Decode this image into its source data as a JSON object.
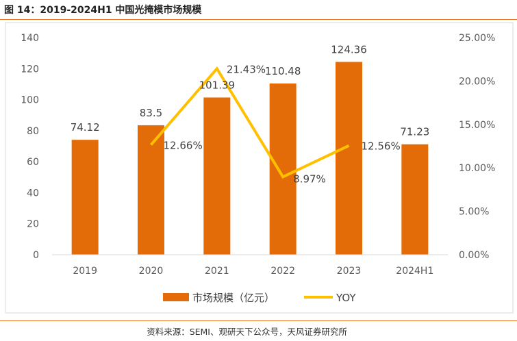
{
  "figure": {
    "title": "图 14：2019-2024H1 中国光掩模市场规模",
    "source": "资料来源：SEMI、观研天下公众号，天风证券研究所"
  },
  "colors": {
    "accent": "#E87722",
    "bar": "#E36C09",
    "line": "#FFC000"
  },
  "chart_data": {
    "type": "bar",
    "categories": [
      "2019",
      "2020",
      "2021",
      "2022",
      "2023",
      "2024H1"
    ],
    "series": [
      {
        "name": "市场规模（亿元）",
        "type": "bar",
        "axis": "left",
        "values": [
          74.12,
          83.5,
          101.39,
          110.48,
          124.36,
          71.23
        ],
        "labels": [
          "74.12",
          "83.5",
          "101.39",
          "110.48",
          "124.36",
          "71.23"
        ]
      },
      {
        "name": "YOY",
        "type": "line",
        "axis": "right",
        "values": [
          null,
          12.66,
          21.43,
          8.97,
          12.56,
          null
        ],
        "labels": [
          null,
          "12.66%",
          "21.43%",
          "8.97%",
          "12.56%",
          null
        ]
      }
    ],
    "left_axis": {
      "ylim": [
        0,
        140
      ],
      "ticks": [
        "0",
        "20",
        "40",
        "60",
        "80",
        "100",
        "120",
        "140"
      ]
    },
    "right_axis": {
      "ylim": [
        0,
        25
      ],
      "ticks": [
        "0.00%",
        "5.00%",
        "10.00%",
        "15.00%",
        "20.00%",
        "25.00%"
      ]
    },
    "legend": "bottom",
    "grid": false
  }
}
